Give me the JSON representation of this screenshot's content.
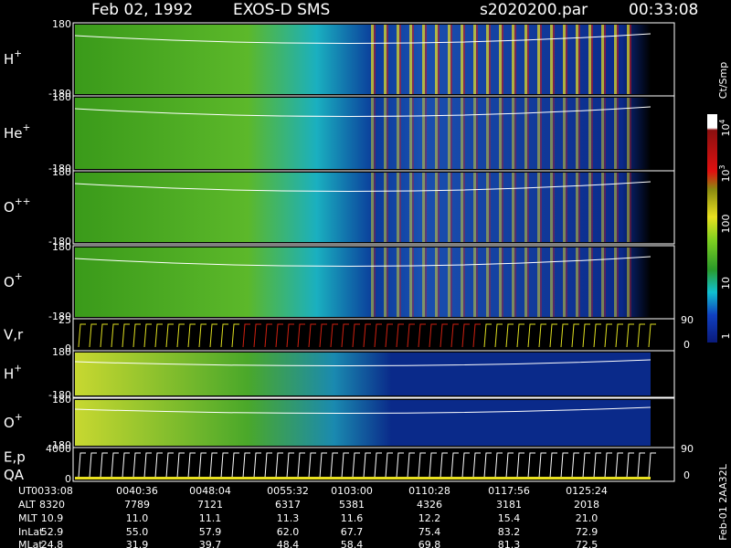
{
  "header": {
    "date": "Feb 02, 1992",
    "instrument": "EXOS-D SMS",
    "file": "s2020200.par",
    "time": "00:33:08"
  },
  "panels": [
    {
      "label": [
        {
          "text": "H"
        },
        {
          "sup": "+"
        }
      ],
      "top": "180",
      "bottom": "-180"
    },
    {
      "label": [
        {
          "text": "He"
        },
        {
          "sup": "+"
        }
      ],
      "top": "180",
      "bottom": "-180"
    },
    {
      "label": [
        {
          "text": "O"
        },
        {
          "sup": "++"
        }
      ],
      "top": "180",
      "bottom": "-180"
    },
    {
      "label": [
        {
          "text": "O"
        },
        {
          "sup": "+"
        }
      ],
      "top": "180",
      "bottom": "-180"
    },
    {
      "label": [
        {
          "text": "V,r"
        }
      ],
      "top": "25",
      "bottom": "0",
      "right_top": "90",
      "right_bottom": "0"
    },
    {
      "label": [
        {
          "text": "H"
        },
        {
          "sup": "+"
        }
      ],
      "top": "180",
      "bottom": "-180"
    },
    {
      "label": [
        {
          "text": "O"
        },
        {
          "sup": "+"
        }
      ],
      "top": "180",
      "bottom": "-180"
    },
    {
      "label": [
        {
          "text": "E,p"
        }
      ],
      "label2": "QA",
      "top": "4000",
      "bottom": "0",
      "right_top": "90",
      "right_bottom": "0"
    }
  ],
  "colorbar": {
    "title": "Ct/Smp",
    "labels": [
      [
        {
          "text": "10"
        },
        {
          "sup": "4"
        }
      ],
      [
        {
          "text": "10"
        },
        {
          "sup": "3"
        }
      ],
      [
        {
          "text": "100"
        }
      ],
      [
        {
          "text": "10"
        }
      ],
      [
        {
          "text": "1"
        }
      ]
    ]
  },
  "side_note": "Feb-01 2AA32L",
  "table": {
    "row_labels": [
      "UT",
      "ALT",
      "MLT",
      "InLat",
      "MLat"
    ],
    "rows": [
      [
        "0033:08",
        "0040:36",
        "0048:04",
        "0055:32",
        "0103:00",
        "0110:28",
        "0117:56",
        "0125:24"
      ],
      [
        "8320",
        "7789",
        "7121",
        "6317",
        "5381",
        "4326",
        "3181",
        "2018"
      ],
      [
        "10.9",
        "11.0",
        "11.1",
        "11.3",
        "11.6",
        "12.2",
        "15.4",
        "21.0"
      ],
      [
        "52.9",
        "55.0",
        "57.9",
        "62.0",
        "67.7",
        "75.4",
        "83.2",
        "72.9"
      ],
      [
        "24.8",
        "31.9",
        "39.7",
        "48.4",
        "58.4",
        "69.8",
        "81.3",
        "72.5"
      ]
    ]
  }
}
